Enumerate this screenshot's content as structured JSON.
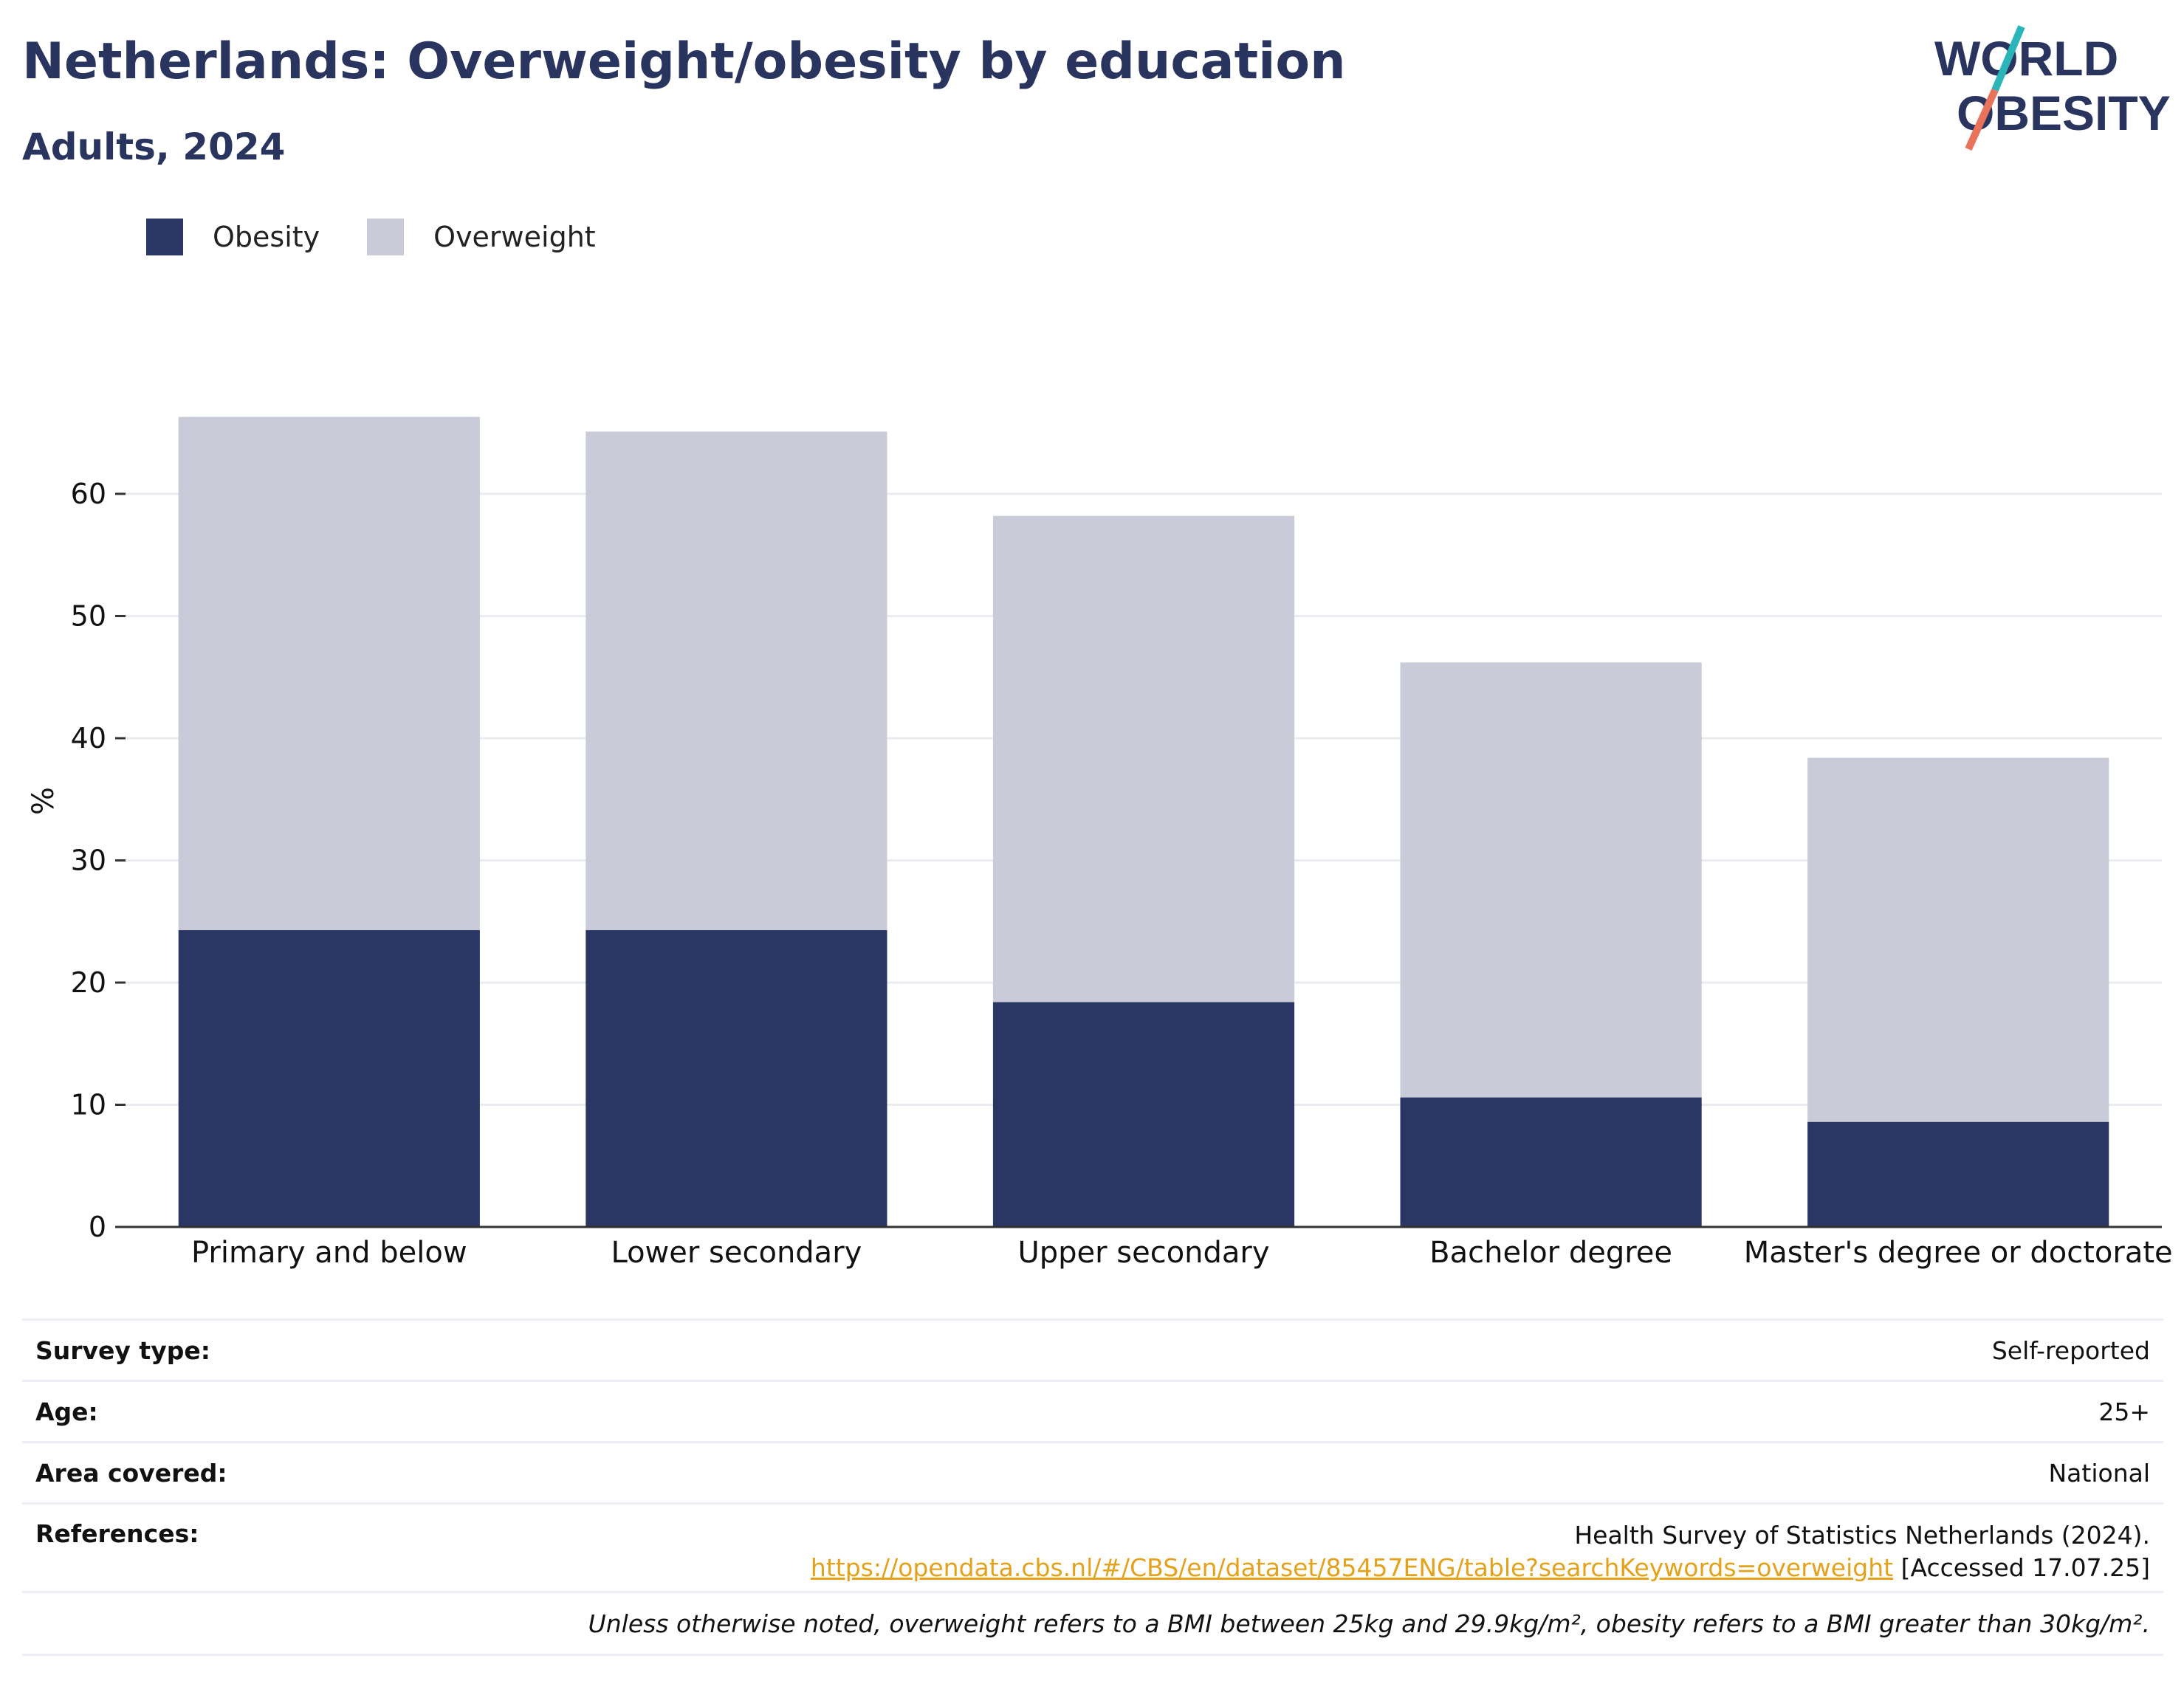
{
  "header": {
    "title": "Netherlands: Overweight/obesity by education",
    "subtitle": "Adults, 2024"
  },
  "logo": {
    "line1": "WORLD",
    "line2": "OBESITY"
  },
  "colors": {
    "obesity": "#2a3663",
    "overweight": "#c9ccd8",
    "text": "#29345f",
    "link": "#e4a11b"
  },
  "chart_data": {
    "type": "bar",
    "stacked": true,
    "categories": [
      "Primary and below",
      "Lower secondary",
      "Upper secondary",
      "Bachelor degree",
      "Master's degree or doctorate"
    ],
    "series": [
      {
        "name": "Obesity",
        "values": [
          24.3,
          24.3,
          18.4,
          10.6,
          8.6
        ]
      },
      {
        "name": "Overweight",
        "values": [
          42.0,
          40.8,
          39.8,
          35.6,
          29.8
        ]
      }
    ],
    "ylabel": "%",
    "ylim": [
      0,
      69
    ],
    "yticks": [
      0,
      10,
      20,
      30,
      40,
      50,
      60
    ],
    "grid": true,
    "legend": "top-left"
  },
  "info": {
    "survey_type": {
      "label": "Survey type:",
      "value": "Self-reported"
    },
    "age": {
      "label": "Age:",
      "value": "25+"
    },
    "area": {
      "label": "Area covered:",
      "value": "National"
    },
    "references": {
      "label": "References:",
      "line1": "Health Survey of Statistics Netherlands (2024).",
      "link": "https://opendata.cbs.nl/#/CBS/en/dataset/85457ENG/table?searchKeywords=overweight",
      "accessed": "[Accessed 17.07.25]"
    },
    "note": "Unless otherwise noted, overweight refers to a BMI between 25kg and 29.9kg/m², obesity refers to a BMI greater than 30kg/m²."
  }
}
